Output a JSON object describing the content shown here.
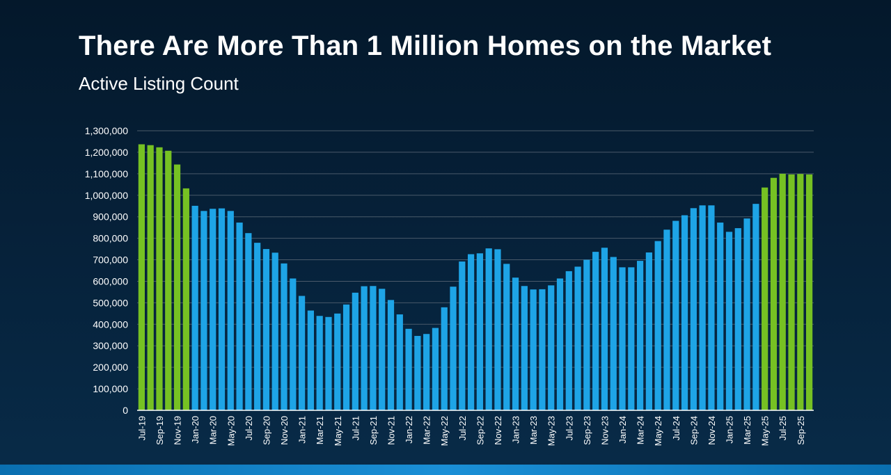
{
  "title": "There Are More Than 1 Million Homes on the Market",
  "subtitle": "Active Listing Count",
  "colors": {
    "highlight": "#76c123",
    "base": "#1ea4e6",
    "grid": "#4a5a6a",
    "axis": "#ffffff"
  },
  "chart_data": {
    "type": "bar",
    "title": "There Are More Than 1 Million Homes on the Market",
    "subtitle": "Active Listing Count",
    "ylim": [
      0,
      1300000
    ],
    "yticks": [
      "0",
      "100,000",
      "200,000",
      "300,000",
      "400,000",
      "500,000",
      "600,000",
      "700,000",
      "800,000",
      "900,000",
      "1,000,000",
      "1,100,000",
      "1,200,000",
      "1,300,000"
    ],
    "grid": true,
    "categories": [
      "Jul-19",
      "Aug-19",
      "Sep-19",
      "Oct-19",
      "Nov-19",
      "Dec-19",
      "Jan-20",
      "Feb-20",
      "Mar-20",
      "Apr-20",
      "May-20",
      "Jun-20",
      "Jul-20",
      "Aug-20",
      "Sep-20",
      "Oct-20",
      "Nov-20",
      "Dec-20",
      "Jan-21",
      "Feb-21",
      "Mar-21",
      "Apr-21",
      "May-21",
      "Jun-21",
      "Jul-21",
      "Aug-21",
      "Sep-21",
      "Oct-21",
      "Nov-21",
      "Dec-21",
      "Jan-22",
      "Feb-22",
      "Mar-22",
      "Apr-22",
      "May-22",
      "Jun-22",
      "Jul-22",
      "Aug-22",
      "Sep-22",
      "Oct-22",
      "Nov-22",
      "Dec-22",
      "Jan-23",
      "Feb-23",
      "Mar-23",
      "Apr-23",
      "May-23",
      "Jun-23",
      "Jul-23",
      "Aug-23",
      "Sep-23",
      "Oct-23",
      "Nov-23",
      "Dec-23",
      "Jan-24",
      "Feb-24",
      "Mar-24",
      "Apr-24",
      "May-24",
      "Jun-24",
      "Jul-24",
      "Aug-24",
      "Sep-24",
      "Oct-24",
      "Nov-24",
      "Dec-24",
      "Jan-25",
      "Feb-25",
      "Mar-25",
      "Apr-25",
      "May-25",
      "Jun-25",
      "Jul-25",
      "Aug-25",
      "Sep-25",
      "Oct-25"
    ],
    "tick_labels_shown": [
      "Jul-19",
      "Sep-19",
      "Nov-19",
      "Jan-20",
      "Mar-20",
      "May-20",
      "Jul-20",
      "Sep-20",
      "Nov-20",
      "Jan-21",
      "Mar-21",
      "May-21",
      "Jul-21",
      "Sep-21",
      "Nov-21",
      "Jan-22",
      "Mar-22",
      "May-22",
      "Jul-22",
      "Sep-22",
      "Nov-22",
      "Jan-23",
      "Mar-23",
      "May-23",
      "Jul-23",
      "Sep-23",
      "Nov-23",
      "Jan-24",
      "Mar-24",
      "May-24",
      "Jul-24",
      "Sep-24",
      "Nov-24",
      "Jan-25",
      "Mar-25",
      "May-25",
      "Jul-25",
      "Sep-25"
    ],
    "values": [
      1237000,
      1233000,
      1223000,
      1207000,
      1143000,
      1032000,
      951000,
      927000,
      937000,
      939000,
      927000,
      873000,
      824000,
      779000,
      750000,
      733000,
      683000,
      613000,
      532000,
      464000,
      439000,
      434000,
      450000,
      492000,
      547000,
      577000,
      578000,
      565000,
      513000,
      446000,
      379000,
      346000,
      355000,
      383000,
      479000,
      575000,
      692000,
      726000,
      730000,
      753000,
      749000,
      681000,
      617000,
      578000,
      562000,
      563000,
      581000,
      613000,
      647000,
      668000,
      700000,
      737000,
      756000,
      713000,
      665000,
      665000,
      695000,
      734000,
      787000,
      840000,
      881000,
      907000,
      940000,
      953000,
      953000,
      873000,
      830000,
      847000,
      892000,
      960000,
      1036000,
      1081000,
      1100000,
      1097000,
      1099000,
      1097000
    ],
    "highlighted": [
      true,
      true,
      true,
      true,
      true,
      true,
      false,
      false,
      false,
      false,
      false,
      false,
      false,
      false,
      false,
      false,
      false,
      false,
      false,
      false,
      false,
      false,
      false,
      false,
      false,
      false,
      false,
      false,
      false,
      false,
      false,
      false,
      false,
      false,
      false,
      false,
      false,
      false,
      false,
      false,
      false,
      false,
      false,
      false,
      false,
      false,
      false,
      false,
      false,
      false,
      false,
      false,
      false,
      false,
      false,
      false,
      false,
      false,
      false,
      false,
      false,
      false,
      false,
      false,
      false,
      false,
      false,
      false,
      false,
      false,
      true,
      true,
      true,
      true,
      true,
      true
    ]
  }
}
